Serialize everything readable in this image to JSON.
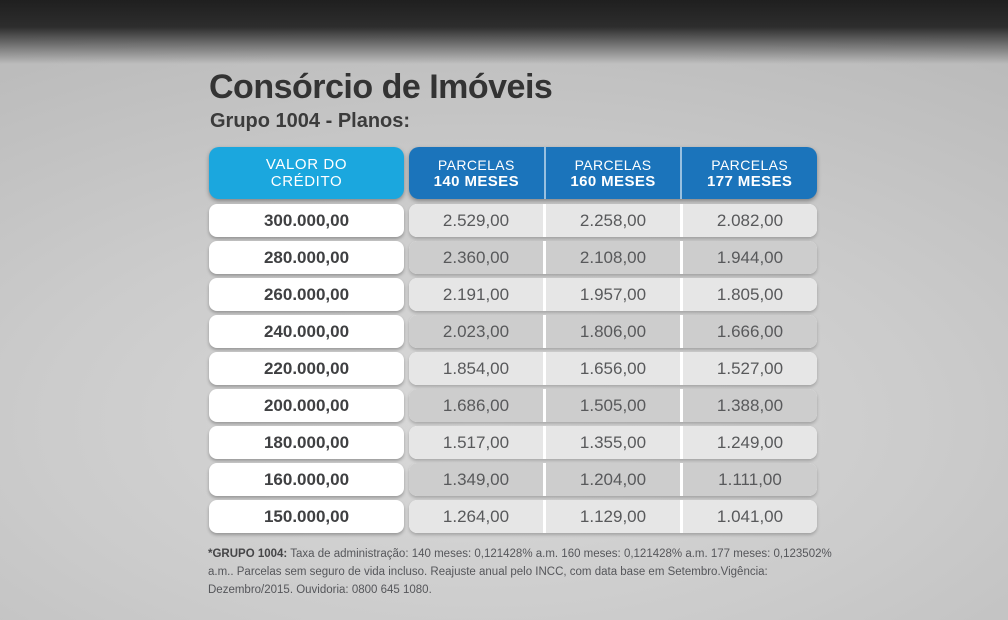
{
  "header": {
    "title": "Consórcio de Imóveis",
    "subtitle": "Grupo 1004 - Planos:"
  },
  "table": {
    "credit_header": {
      "line1": "VALOR DO",
      "line2": "CRÉDITO"
    },
    "plan_headers": [
      {
        "label": "PARCELAS",
        "term": "140 MESES"
      },
      {
        "label": "PARCELAS",
        "term": "160 MESES"
      },
      {
        "label": "PARCELAS",
        "term": "177 MESES"
      }
    ],
    "rows": [
      {
        "credit": "300.000,00",
        "installments": [
          "2.529,00",
          "2.258,00",
          "2.082,00"
        ]
      },
      {
        "credit": "280.000,00",
        "installments": [
          "2.360,00",
          "2.108,00",
          "1.944,00"
        ]
      },
      {
        "credit": "260.000,00",
        "installments": [
          "2.191,00",
          "1.957,00",
          "1.805,00"
        ]
      },
      {
        "credit": "240.000,00",
        "installments": [
          "2.023,00",
          "1.806,00",
          "1.666,00"
        ]
      },
      {
        "credit": "220.000,00",
        "installments": [
          "1.854,00",
          "1.656,00",
          "1.527,00"
        ]
      },
      {
        "credit": "200.000,00",
        "installments": [
          "1.686,00",
          "1.505,00",
          "1.388,00"
        ]
      },
      {
        "credit": "180.000,00",
        "installments": [
          "1.517,00",
          "1.355,00",
          "1.249,00"
        ]
      },
      {
        "credit": "160.000,00",
        "installments": [
          "1.349,00",
          "1.204,00",
          "1.111,00"
        ]
      },
      {
        "credit": "150.000,00",
        "installments": [
          "1.264,00",
          "1.129,00",
          "1.041,00"
        ]
      }
    ]
  },
  "footer": {
    "bold_label": "*GRUPO 1004:",
    "text": " Taxa de administração: 140 meses: 0,121428% a.m. 160 meses: 0,121428% a.m. 177 meses: 0,123502% a.m.. Parcelas sem seguro de vida incluso. Reajuste anual pelo INCC, com data base em Setembro.Vigência: Dezembro/2015.  Ouvidoria: 0800 645 1080."
  },
  "colors": {
    "credit_header_bg": "#1BA7DE",
    "plan_header_bg": "#1B74BB",
    "row_light_bg": "#E6E6E6",
    "row_dark_bg": "#CDCDCD",
    "credit_cell_bg": "#FFFFFF",
    "title_text": "#333333",
    "value_text": "#58595B",
    "top_band": "#1F1F1F",
    "background": "#C9C9C9"
  }
}
